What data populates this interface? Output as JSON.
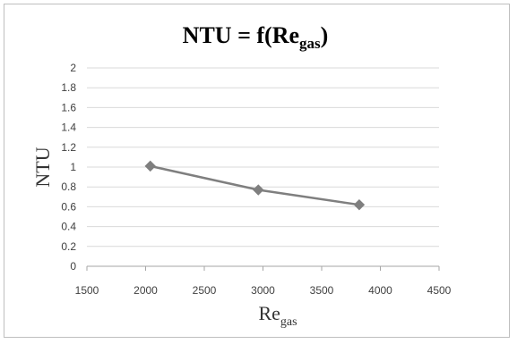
{
  "chart_data": {
    "type": "line",
    "title": {
      "main": "NTU = f(Re",
      "sub": "gas",
      "close": ")"
    },
    "xlabel": {
      "main": "Re",
      "sub": "gas"
    },
    "ylabel": "NTU",
    "xlim": [
      1500,
      4500
    ],
    "ylim": [
      0,
      2
    ],
    "xticks": [
      "1500",
      "2000",
      "2500",
      "3000",
      "3500",
      "4000",
      "4500"
    ],
    "yticks": [
      "0",
      "0.2",
      "0.4",
      "0.6",
      "0.8",
      "1",
      "1.2",
      "1.4",
      "1.6",
      "1.8",
      "2"
    ],
    "grid": "horizontal",
    "legend": "none",
    "series": [
      {
        "x": [
          2040,
          2960,
          3820
        ],
        "y": [
          1.01,
          0.77,
          0.62
        ],
        "color": "#7f7f7f",
        "marker": "diamond"
      }
    ]
  }
}
